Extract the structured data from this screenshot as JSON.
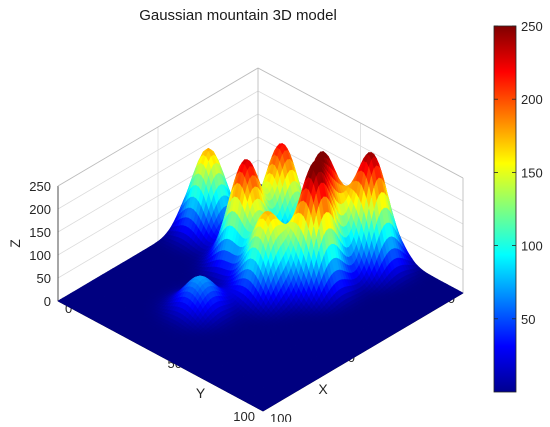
{
  "chart_data": {
    "type": "surface",
    "title": "Gaussian mountain 3D model",
    "xlabel": "X",
    "ylabel": "Y",
    "zlabel": "Z",
    "xlim": [
      0,
      100
    ],
    "ylim": [
      0,
      100
    ],
    "zlim": [
      0,
      250
    ],
    "xticks": [
      0,
      50,
      100
    ],
    "yticks": [
      0,
      50,
      100
    ],
    "zticks": [
      0,
      50,
      100,
      150,
      200,
      250
    ],
    "colorbar": {
      "limits": [
        0,
        250
      ],
      "ticks": [
        50,
        100,
        150,
        200,
        250
      ],
      "colormap": "jet"
    },
    "grid": true,
    "peaks": [
      {
        "x": 33,
        "y": 8,
        "height": 178,
        "sigma": 6
      },
      {
        "x": 22,
        "y": 33,
        "height": 218,
        "sigma": 6
      },
      {
        "x": 40,
        "y": 33,
        "height": 228,
        "sigma": 6
      },
      {
        "x": 22,
        "y": 53,
        "height": 222,
        "sigma": 6
      },
      {
        "x": 10,
        "y": 65,
        "height": 243,
        "sigma": 6
      },
      {
        "x": 33,
        "y": 60,
        "height": 238,
        "sigma": 6
      },
      {
        "x": 47,
        "y": 50,
        "height": 170,
        "sigma": 6
      },
      {
        "x": 70,
        "y": 40,
        "height": 70,
        "sigma": 6
      }
    ]
  }
}
